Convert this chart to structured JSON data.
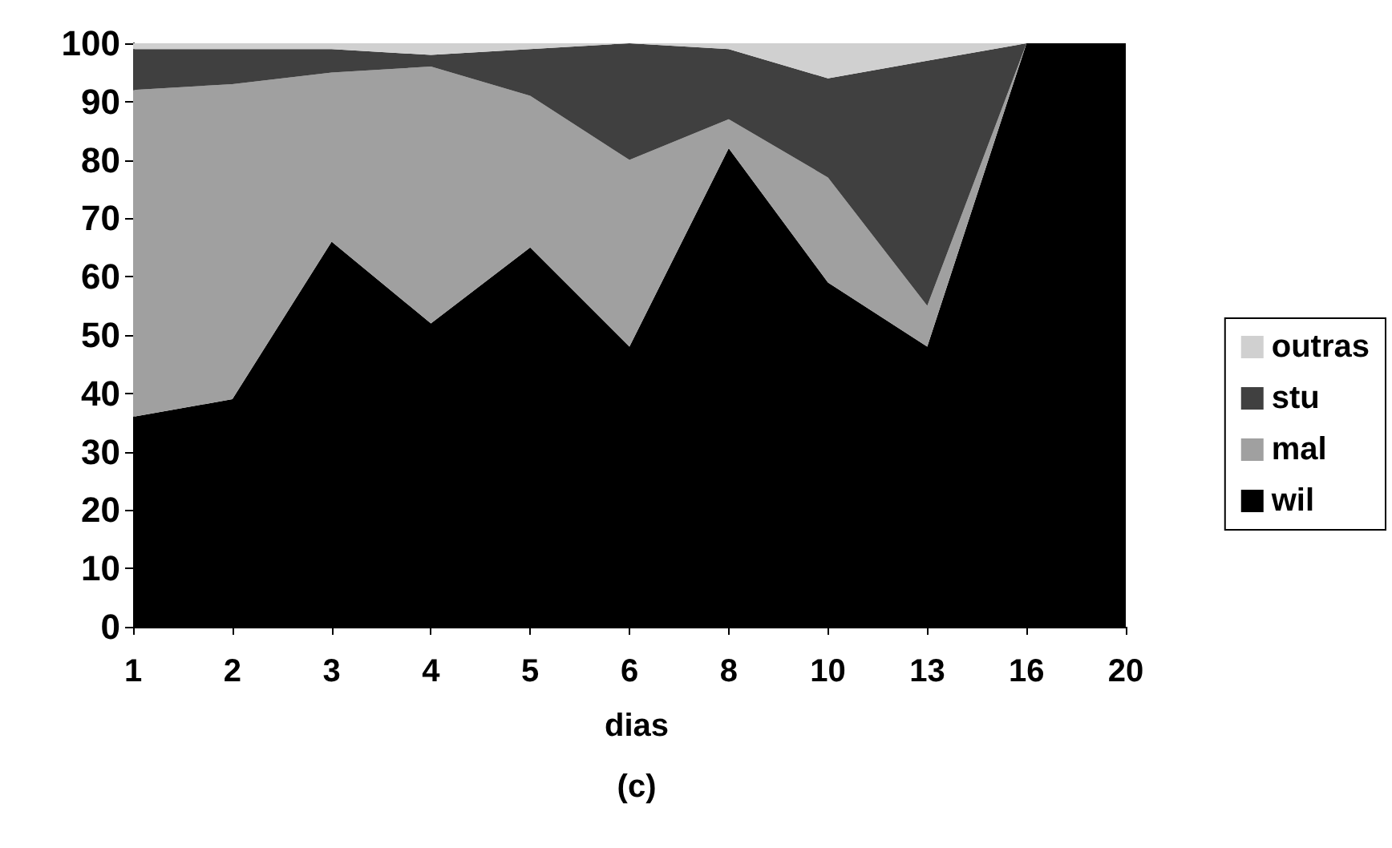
{
  "chart_data": {
    "type": "area",
    "stacked": true,
    "xlabel": "dias",
    "annotations": [
      "(c)"
    ],
    "categories": [
      "1",
      "2",
      "3",
      "4",
      "5",
      "6",
      "8",
      "10",
      "13",
      "16",
      "20"
    ],
    "series": [
      {
        "name": "wil",
        "color": "#000000",
        "values": [
          36,
          39,
          66,
          52,
          65,
          48,
          82,
          59,
          48,
          100,
          100
        ]
      },
      {
        "name": "mal",
        "color": "#a0a0a0",
        "values": [
          56,
          54,
          29,
          44,
          26,
          32,
          5,
          18,
          7,
          0,
          0
        ]
      },
      {
        "name": "stu",
        "color": "#404040",
        "values": [
          7,
          6,
          4,
          2,
          8,
          20,
          12,
          17,
          42,
          0,
          0
        ]
      },
      {
        "name": "outras",
        "color": "#d0d0d0",
        "values": [
          1,
          1,
          1,
          2,
          1,
          0,
          1,
          6,
          3,
          0,
          0
        ]
      }
    ],
    "ylim": [
      0,
      100
    ],
    "yticks": [
      0,
      10,
      20,
      30,
      40,
      50,
      60,
      70,
      80,
      90,
      100
    ],
    "grid": false,
    "legend": "right"
  }
}
